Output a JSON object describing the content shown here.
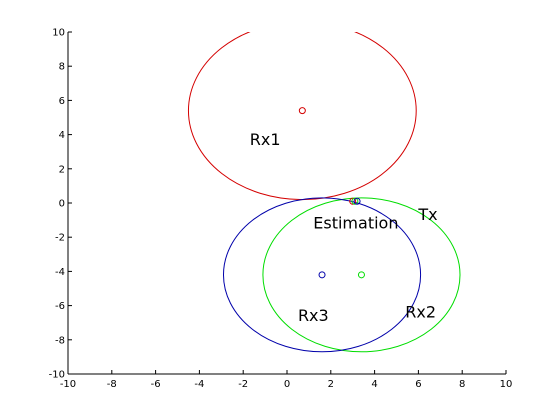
{
  "chart_data": {
    "type": "scatter",
    "title": "",
    "xlabel": "",
    "ylabel": "",
    "xlim": [
      -10,
      10
    ],
    "ylim": [
      -10,
      10
    ],
    "xticks": [
      -10,
      -8,
      -6,
      -4,
      -2,
      0,
      2,
      4,
      6,
      8,
      10
    ],
    "yticks": [
      -10,
      -8,
      -6,
      -4,
      -2,
      0,
      2,
      4,
      6,
      8,
      10
    ],
    "grid": false,
    "series": [
      {
        "color": "#d40000",
        "center": [
          0.7,
          5.4
        ],
        "radius": 5.2
      },
      {
        "color": "#00dd00",
        "center": [
          3.4,
          -4.2
        ],
        "radius": 4.5
      },
      {
        "color": "#0000aa",
        "center": [
          1.6,
          -4.2
        ],
        "radius": 4.5
      }
    ],
    "points": [
      {
        "x": 3.0,
        "y": 0.1,
        "color": "#d40000"
      },
      {
        "x": 3.1,
        "y": 0.1,
        "color": "#00dd00"
      },
      {
        "x": 3.2,
        "y": 0.1,
        "color": "#0000aa"
      }
    ],
    "annotations": [
      {
        "text": "Rx1",
        "x": -1.7,
        "y": 3.4
      },
      {
        "text": "Estimation",
        "x": 1.2,
        "y": -1.5
      },
      {
        "text": "Tx",
        "x": 6.0,
        "y": -1.0
      },
      {
        "text": "Rx3",
        "x": 0.5,
        "y": -6.9
      },
      {
        "text": "Rx2",
        "x": 5.4,
        "y": -6.7
      }
    ]
  }
}
